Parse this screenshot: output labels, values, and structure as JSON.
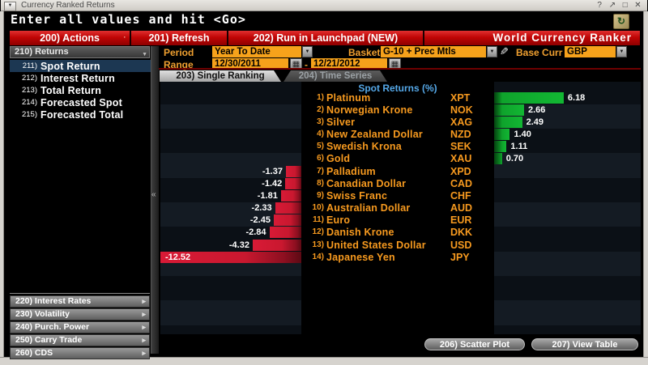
{
  "window": {
    "title": "Currency Ranked Returns",
    "controls": {
      "help": "?",
      "popout": "↗",
      "maximize": "□",
      "close": "✕"
    }
  },
  "command_line": {
    "text": "Enter all values and hit <Go>"
  },
  "toolbar": {
    "actions": "200) Actions",
    "separator": "·",
    "refresh": "201) Refresh",
    "launchpad": "202) Run in Launchpad (NEW)",
    "app_title": "World Currency Ranker"
  },
  "sidebar": {
    "header": "210) Returns",
    "items": [
      {
        "num": "211)",
        "label": "Spot Return",
        "selected": true
      },
      {
        "num": "212)",
        "label": "Interest Return",
        "selected": false
      },
      {
        "num": "213)",
        "label": "Total Return",
        "selected": false
      },
      {
        "num": "214)",
        "label": "Forecasted Spot",
        "selected": false
      },
      {
        "num": "215)",
        "label": "Forecasted Total",
        "selected": false
      }
    ],
    "sections": [
      "220) Interest Rates",
      "230) Volatility",
      "240) Purch. Power",
      "250) Carry Trade",
      "260) CDS"
    ]
  },
  "controls": {
    "period_label": "Period",
    "period_value": "Year To Date",
    "range_label": "Range",
    "range_start": "12/30/2011",
    "range_separator": "-",
    "range_end": "12/21/2012",
    "basket_label": "Basket",
    "basket_value": "G-10 + Prec Mtls",
    "base_curr_label": "Base Curr",
    "base_curr_value": "GBP"
  },
  "tabs": [
    {
      "label": "203) Single Ranking",
      "active": true
    },
    {
      "label": "204) Time Series",
      "active": false
    }
  ],
  "chart_data": {
    "type": "bar",
    "orientation": "horizontal",
    "title": "Spot Returns (%)",
    "categories": [
      "Platinum",
      "Norwegian Krone",
      "Silver",
      "New Zealand Dollar",
      "Swedish Krona",
      "Gold",
      "Palladium",
      "Canadian Dollar",
      "Swiss Franc",
      "Australian Dollar",
      "Euro",
      "Danish Krone",
      "United States Dollar",
      "Japanese Yen"
    ],
    "tickers": [
      "XPT",
      "NOK",
      "XAG",
      "NZD",
      "SEK",
      "XAU",
      "XPD",
      "CAD",
      "CHF",
      "AUD",
      "EUR",
      "DKK",
      "USD",
      "JPY"
    ],
    "values": [
      6.18,
      2.66,
      2.49,
      1.4,
      1.11,
      0.7,
      -1.37,
      -1.42,
      -1.81,
      -2.33,
      -2.45,
      -2.84,
      -4.32,
      -12.52
    ],
    "value_labels": [
      "6.18",
      "2.66",
      "2.49",
      "1.40",
      "1.11",
      "0.70",
      "-1.37",
      "-1.42",
      "-1.81",
      "-2.33",
      "-2.45",
      "-2.84",
      "-4.32",
      "-12.52"
    ],
    "xlim": [
      -12.6,
      13.0
    ],
    "positive_color": "#0fa32c",
    "negative_color": "#c9182f",
    "legend": "none",
    "grid": "off"
  },
  "footer": {
    "scatter_plot": "206) Scatter Plot",
    "view_table": "207) View Table"
  },
  "icons": {
    "menu_dropdown": "▼",
    "dropdown": "▼",
    "calendar": "▦",
    "pencil": "✎",
    "collapse": "«",
    "section_arrow": "▸",
    "export": "↻"
  },
  "colors": {
    "toolbar_red": "#c00505",
    "field_orange": "#f6a21b",
    "label_amber": "#f0a030",
    "list_orange": "#f79a1f",
    "header_blue": "#55a8e8",
    "selected_item_blue": "#1c3752",
    "band_dark": "#0b1016",
    "band_light": "#141b23"
  }
}
